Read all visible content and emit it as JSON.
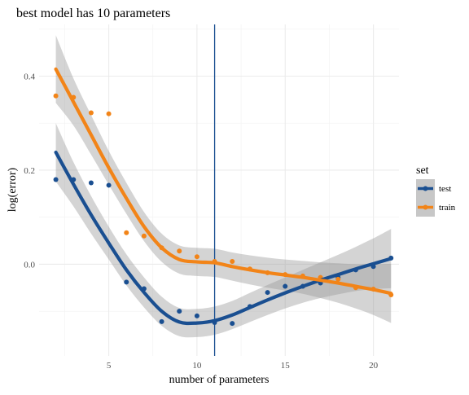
{
  "chart_data": {
    "type": "scatter",
    "title": "best model has 10 parameters",
    "xlabel": "number of parameters",
    "ylabel": "log(error)",
    "xlim": [
      1.05,
      21.45
    ],
    "ylim": [
      -0.195,
      0.51
    ],
    "x_ticks": [
      5,
      10,
      15,
      20
    ],
    "y_ticks": [
      0.0,
      0.2,
      0.4
    ],
    "x_tick_labels": [
      "5",
      "10",
      "15",
      "20"
    ],
    "y_tick_labels": [
      "0.0",
      "0.2",
      "0.4"
    ],
    "grid": true,
    "legend_title": "set",
    "legend_position": "right",
    "vline_x": 11,
    "series": [
      {
        "name": "test",
        "color": "#1a4f91",
        "points": [
          [
            2,
            0.18
          ],
          [
            3,
            0.18
          ],
          [
            4,
            0.173
          ],
          [
            5,
            0.168
          ],
          [
            6,
            -0.038
          ],
          [
            7,
            -0.052
          ],
          [
            8,
            -0.122
          ],
          [
            9,
            -0.1
          ],
          [
            10,
            -0.11
          ],
          [
            11,
            -0.124
          ],
          [
            12,
            -0.126
          ],
          [
            13,
            -0.09
          ],
          [
            14,
            -0.06
          ],
          [
            15,
            -0.047
          ],
          [
            16,
            -0.047
          ],
          [
            17,
            -0.04
          ],
          [
            18,
            -0.028
          ],
          [
            19,
            -0.012
          ],
          [
            20,
            -0.005
          ],
          [
            21,
            0.013
          ]
        ],
        "smooth": [
          [
            2,
            0.238
          ],
          [
            3,
            0.17
          ],
          [
            4,
            0.105
          ],
          [
            5,
            0.045
          ],
          [
            6,
            -0.012
          ],
          [
            7,
            -0.06
          ],
          [
            8,
            -0.1
          ],
          [
            9,
            -0.123
          ],
          [
            10,
            -0.125
          ],
          [
            11,
            -0.12
          ],
          [
            12,
            -0.108
          ],
          [
            13,
            -0.092
          ],
          [
            14,
            -0.076
          ],
          [
            15,
            -0.061
          ],
          [
            16,
            -0.047
          ],
          [
            17,
            -0.034
          ],
          [
            18,
            -0.022
          ],
          [
            19,
            -0.01
          ],
          [
            20,
            0.001
          ],
          [
            21,
            0.012
          ]
        ],
        "band": [
          0.062,
          0.047,
          0.04,
          0.035,
          0.033,
          0.032,
          0.031,
          0.03,
          0.03,
          0.03,
          0.03,
          0.031,
          0.032,
          0.033,
          0.035,
          0.038,
          0.042,
          0.047,
          0.054,
          0.063
        ]
      },
      {
        "name": "train",
        "color": "#f28418",
        "points": [
          [
            2,
            0.358
          ],
          [
            3,
            0.355
          ],
          [
            4,
            0.322
          ],
          [
            5,
            0.32
          ],
          [
            6,
            0.067
          ],
          [
            7,
            0.06
          ],
          [
            8,
            0.035
          ],
          [
            9,
            0.028
          ],
          [
            10,
            0.016
          ],
          [
            11,
            0.006
          ],
          [
            12,
            0.006
          ],
          [
            13,
            -0.01
          ],
          [
            14,
            -0.018
          ],
          [
            15,
            -0.022
          ],
          [
            16,
            -0.025
          ],
          [
            17,
            -0.028
          ],
          [
            18,
            -0.032
          ],
          [
            19,
            -0.05
          ],
          [
            20,
            -0.053
          ],
          [
            21,
            -0.065
          ]
        ],
        "smooth": [
          [
            2,
            0.415
          ],
          [
            3,
            0.345
          ],
          [
            4,
            0.275
          ],
          [
            5,
            0.205
          ],
          [
            6,
            0.14
          ],
          [
            7,
            0.08
          ],
          [
            8,
            0.035
          ],
          [
            9,
            0.01
          ],
          [
            10,
            0.005
          ],
          [
            11,
            0.003
          ],
          [
            12,
            -0.005
          ],
          [
            13,
            -0.012
          ],
          [
            14,
            -0.018
          ],
          [
            15,
            -0.023
          ],
          [
            16,
            -0.028
          ],
          [
            17,
            -0.034
          ],
          [
            18,
            -0.04
          ],
          [
            19,
            -0.047
          ],
          [
            20,
            -0.054
          ],
          [
            21,
            -0.062
          ]
        ],
        "band": [
          0.072,
          0.05,
          0.042,
          0.036,
          0.033,
          0.031,
          0.03,
          0.03,
          0.03,
          0.03,
          0.03,
          0.031,
          0.032,
          0.033,
          0.035,
          0.038,
          0.042,
          0.047,
          0.054,
          0.063
        ]
      }
    ]
  }
}
